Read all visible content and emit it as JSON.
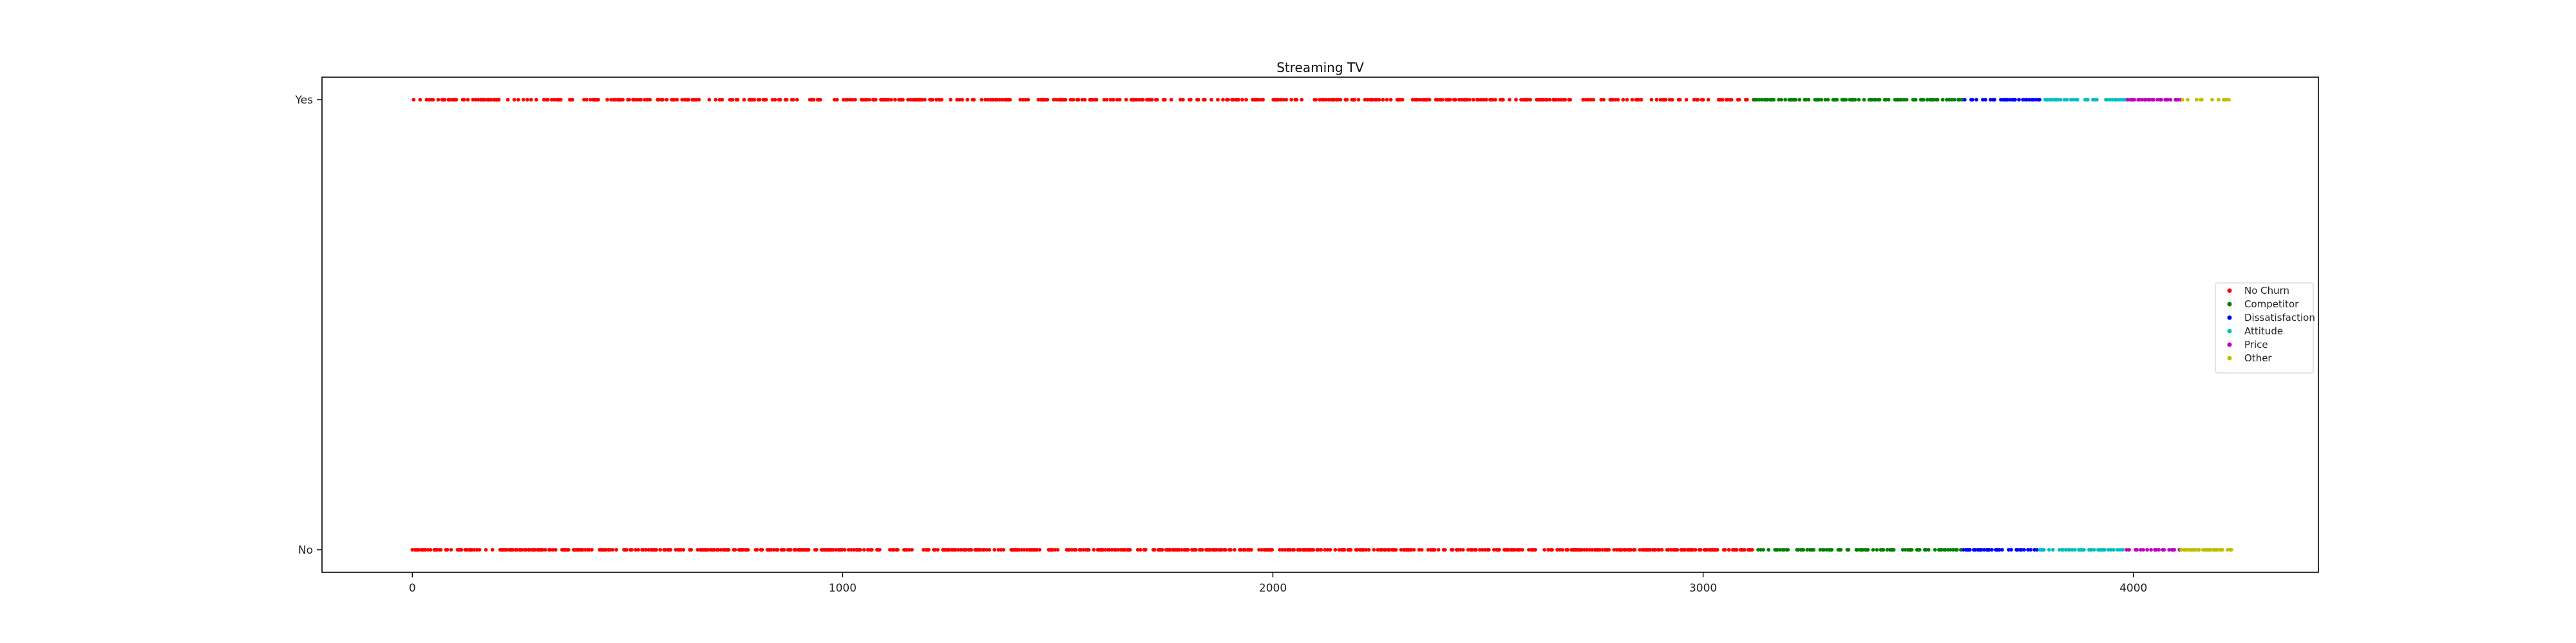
{
  "chart_data": {
    "type": "scatter",
    "title": "Streaming TV",
    "xlabel": "",
    "ylabel": "",
    "xlim": [
      -210,
      4430
    ],
    "x_ticks": [
      0,
      1000,
      2000,
      3000,
      4000
    ],
    "y_categories": [
      "No",
      "Yes"
    ],
    "grid": false,
    "legend_placement": "center-right",
    "series": [
      {
        "name": "No Churn",
        "color": "#ff0000",
        "x_range": [
          0,
          3118
        ],
        "yes_fraction": 0.44
      },
      {
        "name": "Competitor",
        "color": "#008000",
        "x_range": [
          3119,
          3604
        ],
        "yes_fraction": 0.5
      },
      {
        "name": "Dissatisfaction",
        "color": "#0000ff",
        "x_range": [
          3605,
          3782
        ],
        "yes_fraction": 0.45
      },
      {
        "name": "Attitude",
        "color": "#00bfbf",
        "x_range": [
          3783,
          3983
        ],
        "yes_fraction": 0.45
      },
      {
        "name": "Price",
        "color": "#bf00bf",
        "x_range": [
          3984,
          4110
        ],
        "yes_fraction": 0.5
      },
      {
        "name": "Other",
        "color": "#bfbf00",
        "x_range": [
          4111,
          4230
        ],
        "yes_fraction": 0.45
      }
    ]
  }
}
